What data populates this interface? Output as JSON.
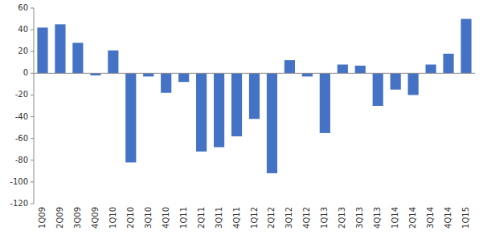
{
  "chart_data": {
    "type": "bar",
    "categories": [
      "1Q09",
      "2Q09",
      "3Q09",
      "4Q09",
      "1Q10",
      "2Q10",
      "3Q10",
      "4Q10",
      "1Q11",
      "2Q11",
      "3Q11",
      "4Q11",
      "1Q12",
      "2Q12",
      "3Q12",
      "4Q12",
      "1Q13",
      "2Q13",
      "3Q13",
      "4Q13",
      "1Q14",
      "2Q14",
      "3Q14",
      "4Q14",
      "1Q15"
    ],
    "values": [
      42,
      45,
      28,
      -2,
      21,
      -82,
      -3,
      -18,
      -8,
      -72,
      -68,
      -58,
      -42,
      -92,
      12,
      -3,
      -55,
      8,
      7,
      -30,
      -15,
      -20,
      8,
      18,
      50
    ],
    "color": "#4472C4",
    "ylim": [
      -120,
      60
    ],
    "yticks": [
      -120,
      -100,
      -80,
      -60,
      -40,
      -20,
      0,
      20,
      40,
      60
    ],
    "grid": false
  }
}
